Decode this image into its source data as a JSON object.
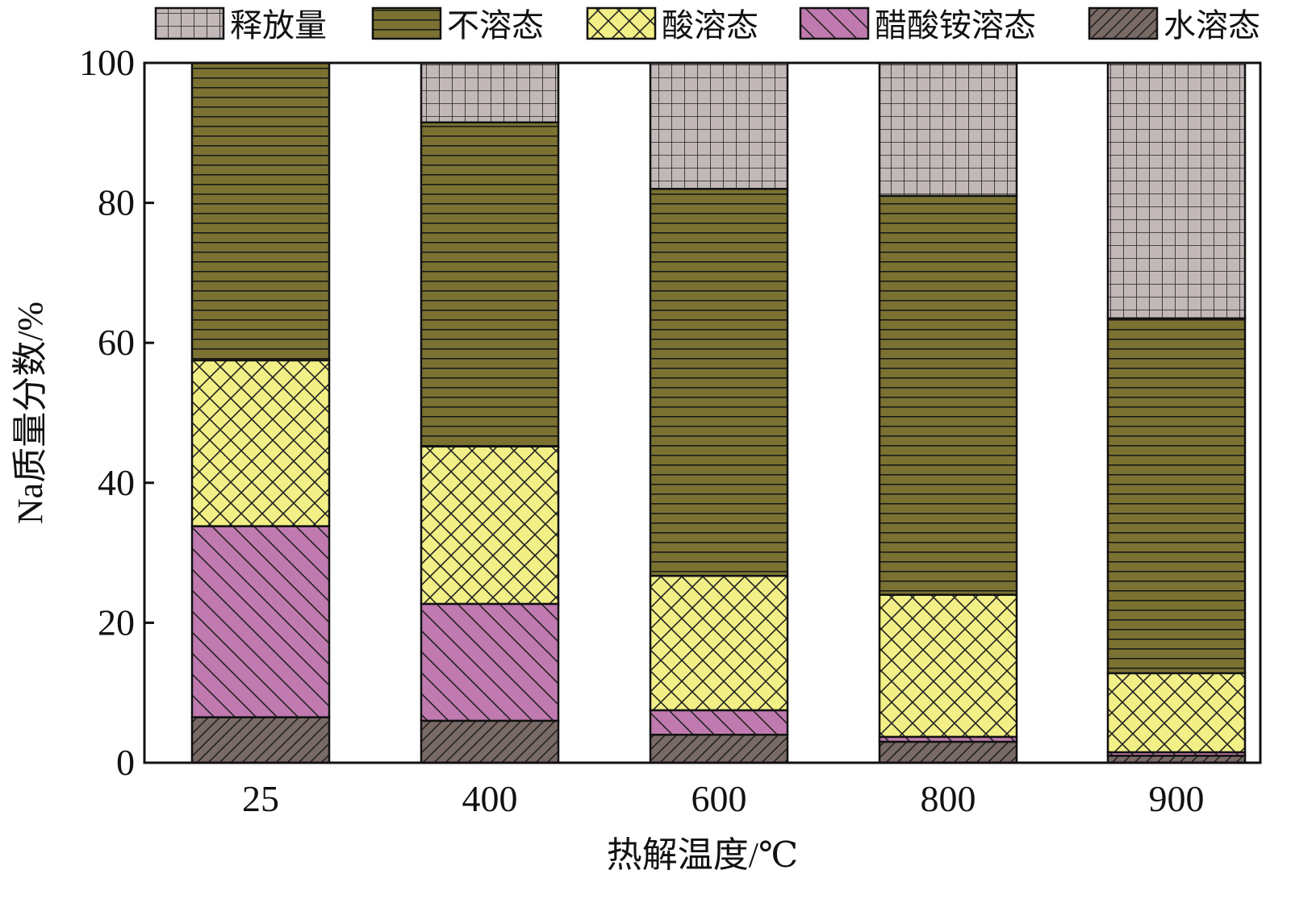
{
  "chart_data": {
    "type": "bar",
    "stacked": true,
    "categories": [
      "25",
      "400",
      "600",
      "800",
      "900"
    ],
    "xlabel": "热解温度/℃",
    "ylabel": "Na质量分数/%",
    "ylim": [
      0,
      100
    ],
    "yticks": [
      "0",
      "20",
      "40",
      "60",
      "80",
      "100"
    ],
    "grid": false,
    "legend_position": "top",
    "series": [
      {
        "name": "水溶态",
        "color": "#7a6a66",
        "pattern": "diagonal-hatch",
        "values": [
          6.5,
          6,
          4,
          3,
          1
        ]
      },
      {
        "name": "醋酸铵溶态",
        "color": "#c07ab0",
        "pattern": "backslash-hatch",
        "values": [
          27.3,
          16.7,
          3.5,
          0.7,
          0.5
        ]
      },
      {
        "name": "酸溶态",
        "color": "#f2ef86",
        "pattern": "cross-hatch",
        "values": [
          23.7,
          22.5,
          19.2,
          20.3,
          11.3
        ]
      },
      {
        "name": "不溶态",
        "color": "#7b7232",
        "pattern": "horizontal-lines",
        "values": [
          42.5,
          46.3,
          55.3,
          57,
          50.7
        ]
      },
      {
        "name": "释放量",
        "color": "#c2b8b8",
        "pattern": "grid",
        "values": [
          0,
          8.5,
          18,
          19,
          36.5
        ]
      }
    ],
    "legend_order": [
      "释放量",
      "不溶态",
      "酸溶态",
      "醋酸铵溶态",
      "水溶态"
    ]
  }
}
